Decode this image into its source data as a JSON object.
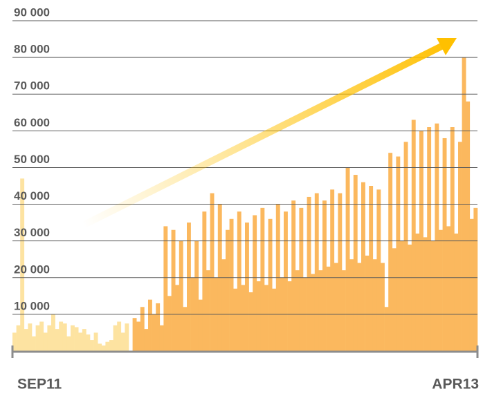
{
  "chart_data": {
    "type": "bar",
    "categories": [
      "SEP11",
      null,
      null,
      null,
      null,
      null,
      null,
      null,
      null,
      null,
      null,
      null,
      null,
      null,
      null,
      null,
      null,
      null,
      null,
      null,
      null,
      null,
      null,
      null,
      null,
      null,
      null,
      null,
      null,
      null,
      null,
      null,
      null,
      null,
      null,
      null,
      null,
      null,
      null,
      null,
      null,
      null,
      null,
      null,
      null,
      null,
      null,
      null,
      null,
      null,
      null,
      null,
      null,
      null,
      null,
      null,
      null,
      null,
      null,
      null,
      null,
      null,
      null,
      null,
      null,
      null,
      null,
      null,
      null,
      null,
      null,
      null,
      null,
      null,
      null,
      null,
      null,
      null,
      null,
      null,
      null,
      null,
      null,
      null,
      null,
      null,
      null,
      null,
      null,
      null,
      null,
      null,
      null,
      null,
      null,
      null,
      null,
      null,
      null,
      null,
      null,
      null,
      null,
      null,
      null,
      null,
      null,
      null,
      null,
      null,
      null,
      null,
      null,
      null,
      null,
      null,
      null,
      null,
      null,
      "APR13"
    ],
    "series": [
      {
        "color": "#fde3a1",
        "values": [
          5000,
          7000,
          47000,
          6000,
          7500,
          4000,
          7000,
          8000,
          5000,
          7000,
          10000,
          6000,
          8000,
          7500,
          4000,
          7000,
          6500,
          5000,
          6000,
          4500,
          3000,
          5000,
          2000,
          1500,
          2500,
          3000,
          7000,
          8000,
          5000,
          7500,
          null,
          null,
          null,
          null,
          null,
          null,
          null,
          null,
          null,
          null,
          null,
          null,
          null,
          null,
          null,
          null,
          null,
          null,
          null,
          null,
          null,
          null,
          null,
          null,
          null,
          null,
          null,
          null,
          null,
          null,
          null,
          null,
          null,
          null,
          null,
          null,
          null,
          null,
          null,
          null,
          null,
          null,
          null,
          null,
          null,
          null,
          null,
          null,
          null,
          null,
          null,
          null,
          null,
          null,
          null,
          null,
          null,
          null,
          null,
          null,
          null,
          null,
          null,
          null,
          null,
          null,
          null,
          null,
          null,
          null,
          null,
          null,
          null,
          null,
          null,
          null,
          null,
          null,
          null,
          null,
          null,
          null,
          null,
          null,
          null,
          null,
          null,
          null,
          null,
          null
        ]
      },
      {
        "color": "#fbb85e",
        "values": [
          null,
          null,
          null,
          null,
          null,
          null,
          null,
          null,
          null,
          null,
          null,
          null,
          null,
          null,
          null,
          null,
          null,
          null,
          null,
          null,
          null,
          null,
          null,
          null,
          null,
          null,
          null,
          null,
          null,
          null,
          null,
          9000,
          8000,
          12000,
          6000,
          14000,
          10000,
          13000,
          7000,
          34000,
          15000,
          33000,
          18000,
          30000,
          12000,
          35000,
          20000,
          30000,
          14000,
          38000,
          22000,
          43000,
          20000,
          40000,
          25000,
          33000,
          36000,
          17000,
          38000,
          18000,
          35000,
          16000,
          37000,
          19000,
          39000,
          18000,
          36000,
          17000,
          40000,
          20000,
          38000,
          19000,
          41000,
          22000,
          39000,
          20000,
          42000,
          21000,
          43000,
          22000,
          41000,
          23000,
          44000,
          24000,
          43000,
          22000,
          50000,
          25000,
          48000,
          24000,
          46000,
          26000,
          45000,
          25000,
          44000,
          24000,
          12000,
          54000,
          28000,
          53000,
          30000,
          57000,
          29000,
          63000,
          32000,
          60000,
          31000,
          61000,
          30000,
          62000,
          33000,
          58000,
          34000,
          61000,
          32000,
          57000,
          80000,
          68000,
          36000,
          39000
        ]
      }
    ],
    "ylim": [
      0,
      90000
    ],
    "yticks": [
      {
        "value": 10000,
        "label": "10 000"
      },
      {
        "value": 20000,
        "label": "20 000"
      },
      {
        "value": 30000,
        "label": "30 000"
      },
      {
        "value": 40000,
        "label": "40 000"
      },
      {
        "value": 50000,
        "label": "50 000"
      },
      {
        "value": 60000,
        "label": "60 000"
      },
      {
        "value": 70000,
        "label": "70 000"
      },
      {
        "value": 80000,
        "label": "80 000"
      },
      {
        "value": 90000,
        "label": "90 000"
      }
    ],
    "grid": true
  }
}
